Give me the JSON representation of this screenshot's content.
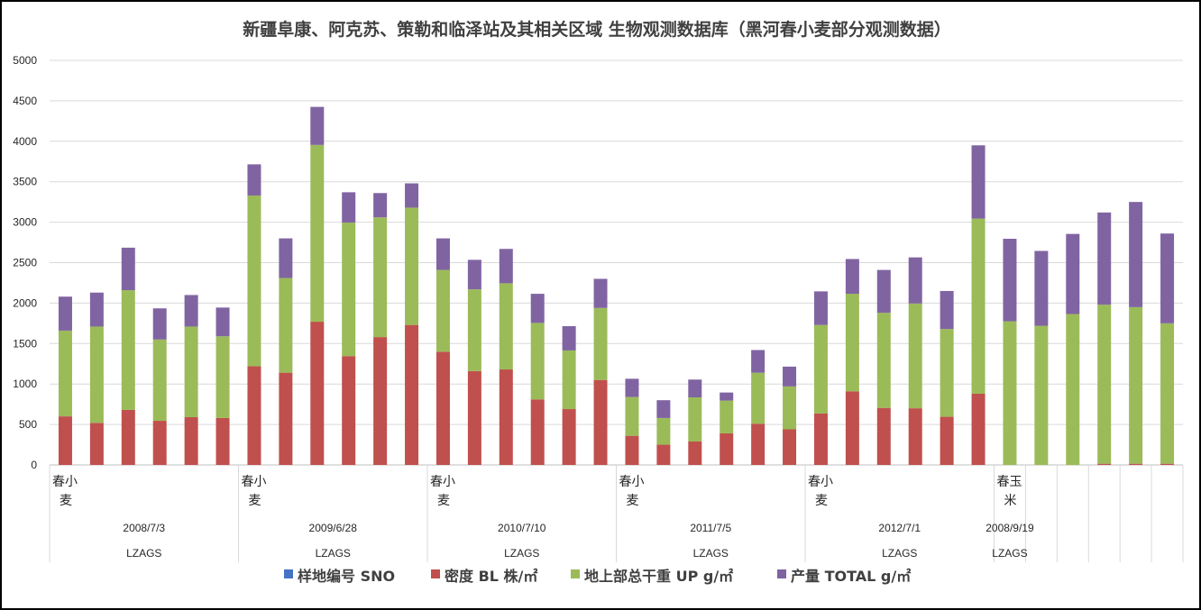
{
  "chart_data": {
    "type": "bar",
    "stacked": true,
    "title": "新疆阜康、阿克苏、策勒和临泽站及其相关区域 生物观测数据库（黑河春小麦部分观测数据）",
    "ylim": [
      0,
      5000
    ],
    "yticks": [
      0,
      500,
      1000,
      1500,
      2000,
      2500,
      3000,
      3500,
      4000,
      4500,
      5000
    ],
    "grid": true,
    "legend_position": "bottom",
    "colors": {
      "series_sno": "#4472c4",
      "series_bl": "#c0504d",
      "series_up": "#9bbb59",
      "series_total": "#8064a2",
      "grid": "#d9d9d9",
      "axis": "#bfbfbf"
    },
    "categories_count": 36,
    "category_levels": {
      "crop_groups": [
        {
          "label": "春小麦",
          "start": 0,
          "end": 5
        },
        {
          "label": "春小麦",
          "start": 6,
          "end": 11
        },
        {
          "label": "春小麦",
          "start": 12,
          "end": 17
        },
        {
          "label": "春小麦",
          "start": 18,
          "end": 23
        },
        {
          "label": "春小麦",
          "start": 24,
          "end": 29
        },
        {
          "label": "春玉米",
          "start": 30,
          "end": 30
        }
      ],
      "date_groups": [
        {
          "label": "2008/7/3",
          "start": 0,
          "end": 5
        },
        {
          "label": "2009/6/28",
          "start": 6,
          "end": 11
        },
        {
          "label": "2010/7/10",
          "start": 12,
          "end": 17
        },
        {
          "label": "2011/7/5",
          "start": 18,
          "end": 23
        },
        {
          "label": "2012/7/1",
          "start": 24,
          "end": 29
        },
        {
          "label": "2008/9/19",
          "start": 30,
          "end": 30
        }
      ],
      "site_groups": [
        {
          "label": "LZAGS",
          "start": 0,
          "end": 5
        },
        {
          "label": "LZAGS",
          "start": 6,
          "end": 11
        },
        {
          "label": "LZAGS",
          "start": 12,
          "end": 17
        },
        {
          "label": "LZAGS",
          "start": 18,
          "end": 23
        },
        {
          "label": "LZAGS",
          "start": 24,
          "end": 29
        },
        {
          "label": "LZAGS",
          "start": 30,
          "end": 30
        }
      ]
    },
    "series": [
      {
        "name": "样地编号 SNO",
        "key": "series_sno",
        "values": [
          0,
          0,
          0,
          0,
          0,
          0,
          0,
          0,
          0,
          0,
          0,
          0,
          0,
          0,
          0,
          0,
          0,
          0,
          0,
          0,
          0,
          0,
          0,
          0,
          0,
          0,
          0,
          0,
          0,
          0,
          0,
          0,
          0,
          0,
          0,
          0
        ]
      },
      {
        "name": "密度 BL 株/㎡",
        "key": "series_bl",
        "values": [
          600,
          520,
          680,
          545,
          590,
          580,
          1220,
          1140,
          1770,
          1345,
          1580,
          1730,
          1400,
          1160,
          1180,
          810,
          690,
          1050,
          360,
          250,
          290,
          390,
          510,
          440,
          635,
          910,
          705,
          700,
          595,
          880,
          0,
          0,
          0,
          15,
          15,
          15
        ]
      },
      {
        "name": "地上部总干重 UP g/㎡",
        "key": "series_up",
        "values": [
          1060,
          1190,
          1480,
          1005,
          1120,
          1010,
          2110,
          1170,
          2185,
          1650,
          1480,
          1450,
          1010,
          1010,
          1065,
          945,
          725,
          890,
          480,
          330,
          545,
          405,
          630,
          530,
          1095,
          1205,
          1175,
          1295,
          1085,
          2165,
          1775,
          1720,
          1865,
          1965,
          1935,
          1735
        ]
      },
      {
        "name": "产量 TOTAL g/㎡",
        "key": "series_total",
        "values": [
          420,
          420,
          525,
          385,
          390,
          355,
          385,
          490,
          470,
          375,
          300,
          300,
          390,
          365,
          425,
          360,
          300,
          360,
          225,
          220,
          220,
          100,
          280,
          245,
          415,
          430,
          530,
          570,
          470,
          905,
          1020,
          925,
          990,
          1140,
          1300,
          1110
        ]
      }
    ]
  }
}
